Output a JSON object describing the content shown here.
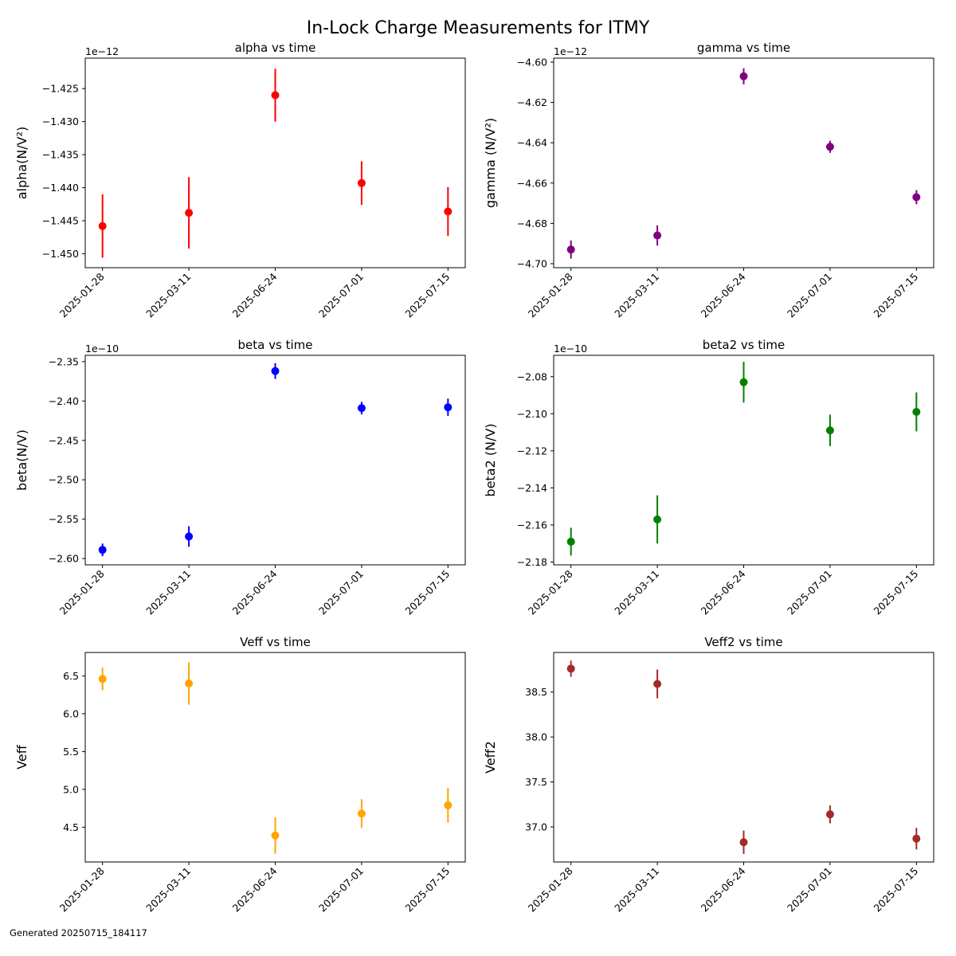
{
  "figure": {
    "suptitle": "In-Lock Charge Measurements for ITMY",
    "footer": "Generated 20250715_184117"
  },
  "chart_data": [
    {
      "type": "scatter",
      "title": "alpha vs time",
      "ylabel": "alpha(N/V²)",
      "offset_label": "1e−12",
      "color": "#ff0000",
      "x": [
        "2025-01-28",
        "2025-03-11",
        "2025-06-24",
        "2025-07-01",
        "2025-07-15"
      ],
      "y": [
        -1.4458,
        -1.4438,
        -1.426,
        -1.4393,
        -1.4436
      ],
      "yerr": [
        0.0048,
        0.0054,
        0.004,
        0.0033,
        0.0037
      ],
      "ylim": [
        -1.4521,
        -1.4204
      ],
      "yticks": [
        -1.45,
        -1.445,
        -1.44,
        -1.435,
        -1.43,
        -1.425
      ],
      "ytick_labels": [
        "−1.450",
        "−1.445",
        "−1.440",
        "−1.435",
        "−1.430",
        "−1.425"
      ]
    },
    {
      "type": "scatter",
      "title": "gamma vs time",
      "ylabel": "gamma (N/V²)",
      "offset_label": "1e−12",
      "color": "#800080",
      "x": [
        "2025-01-28",
        "2025-03-11",
        "2025-06-24",
        "2025-07-01",
        "2025-07-15"
      ],
      "y": [
        -4.693,
        -4.686,
        -4.607,
        -4.642,
        -4.667
      ],
      "yerr": [
        0.0045,
        0.005,
        0.004,
        0.003,
        0.0035
      ],
      "ylim": [
        -4.702,
        -4.598
      ],
      "yticks": [
        -4.7,
        -4.68,
        -4.66,
        -4.64,
        -4.62,
        -4.6
      ],
      "ytick_labels": [
        "−4.70",
        "−4.68",
        "−4.66",
        "−4.64",
        "−4.62",
        "−4.60"
      ]
    },
    {
      "type": "scatter",
      "title": "beta vs time",
      "ylabel": "beta(N/V)",
      "offset_label": "1e−10",
      "color": "#0000ff",
      "x": [
        "2025-01-28",
        "2025-03-11",
        "2025-06-24",
        "2025-07-01",
        "2025-07-15"
      ],
      "y": [
        -2.589,
        -2.572,
        -2.362,
        -2.409,
        -2.408
      ],
      "yerr": [
        0.008,
        0.013,
        0.01,
        0.008,
        0.011
      ],
      "ylim": [
        -2.608,
        -2.342
      ],
      "yticks": [
        -2.6,
        -2.55,
        -2.5,
        -2.45,
        -2.4,
        -2.35
      ],
      "ytick_labels": [
        "−2.60",
        "−2.55",
        "−2.50",
        "−2.45",
        "−2.40",
        "−2.35"
      ]
    },
    {
      "type": "scatter",
      "title": "beta2 vs time",
      "ylabel": "beta2 (N/V)",
      "offset_label": "1e−10",
      "color": "#008000",
      "x": [
        "2025-01-28",
        "2025-03-11",
        "2025-06-24",
        "2025-07-01",
        "2025-07-15"
      ],
      "y": [
        -2.169,
        -2.157,
        -2.083,
        -2.109,
        -2.099
      ],
      "yerr": [
        0.0075,
        0.013,
        0.011,
        0.0085,
        0.0105
      ],
      "ylim": [
        -2.1815,
        -2.0685
      ],
      "yticks": [
        -2.18,
        -2.16,
        -2.14,
        -2.12,
        -2.1,
        -2.08
      ],
      "ytick_labels": [
        "−2.18",
        "−2.16",
        "−2.14",
        "−2.12",
        "−2.10",
        "−2.08"
      ]
    },
    {
      "type": "scatter",
      "title": "Veff vs time",
      "ylabel": "Veff",
      "offset_label": "",
      "color": "#ffa500",
      "x": [
        "2025-01-28",
        "2025-03-11",
        "2025-06-24",
        "2025-07-01",
        "2025-07-15"
      ],
      "y": [
        6.46,
        6.4,
        4.39,
        4.68,
        4.79
      ],
      "yerr": [
        0.15,
        0.28,
        0.24,
        0.19,
        0.23
      ],
      "ylim": [
        4.04,
        6.81
      ],
      "yticks": [
        4.5,
        5.0,
        5.5,
        6.0,
        6.5
      ],
      "ytick_labels": [
        "4.5",
        "5.0",
        "5.5",
        "6.0",
        "6.5"
      ]
    },
    {
      "type": "scatter",
      "title": "Veff2 vs time",
      "ylabel": "Veff2",
      "offset_label": "",
      "color": "#a52a2a",
      "x": [
        "2025-01-28",
        "2025-03-11",
        "2025-06-24",
        "2025-07-01",
        "2025-07-15"
      ],
      "y": [
        38.76,
        38.59,
        36.83,
        37.14,
        36.87
      ],
      "yerr": [
        0.09,
        0.16,
        0.13,
        0.1,
        0.12
      ],
      "ylim": [
        36.61,
        38.94
      ],
      "yticks": [
        37.0,
        37.5,
        38.0,
        38.5
      ],
      "ytick_labels": [
        "37.0",
        "37.5",
        "38.0",
        "38.5"
      ]
    }
  ]
}
